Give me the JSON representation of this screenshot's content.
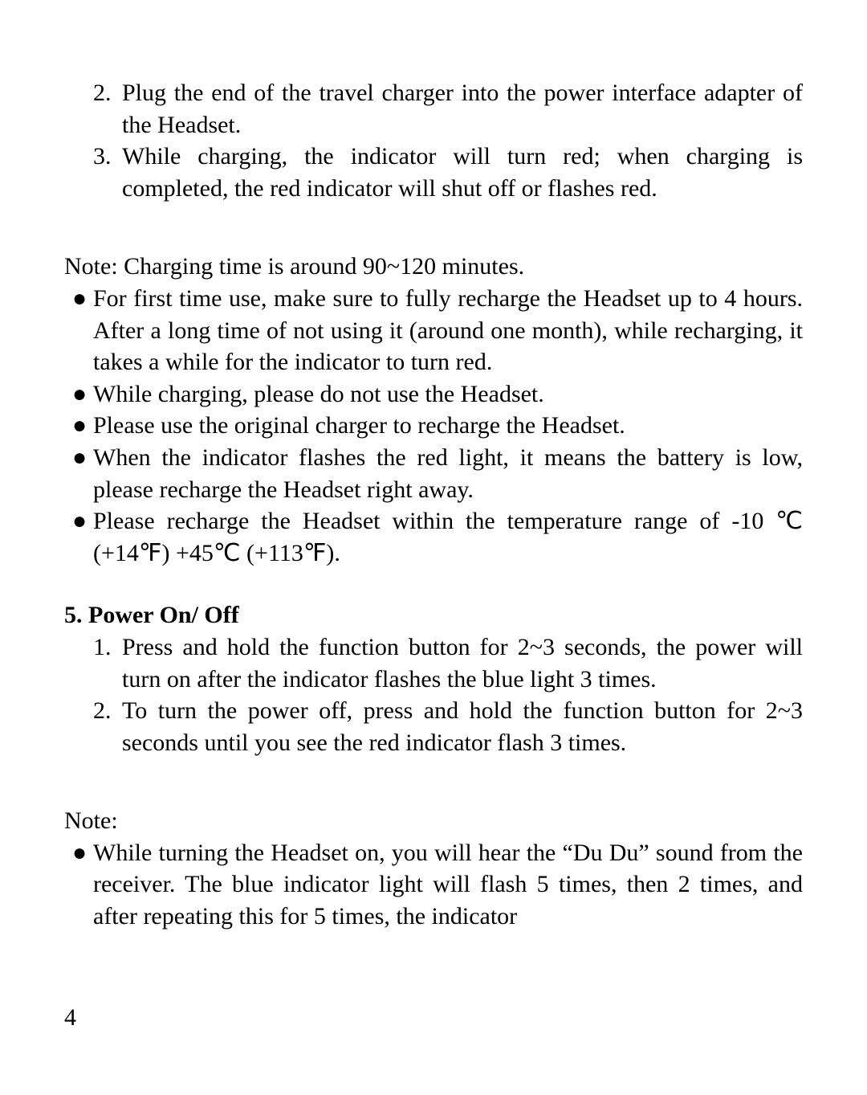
{
  "charging_steps": {
    "items": [
      {
        "num": "2.",
        "text": "Plug the end of the travel charger into the power interface adapter of the Headset."
      },
      {
        "num": "3.",
        "text": "While charging, the indicator will turn red; when charging is completed, the red indicator will shut off or flashes red."
      }
    ]
  },
  "charging_note_label": "Note: Charging time is around 90~120 minutes.",
  "charging_notes": {
    "items": [
      "For first time use, make sure to fully recharge the Headset up to 4 hours.  After a long time of not using it (around one month), while recharging, it takes a while for the indicator to turn red.",
      "While charging, please do not use the Headset.",
      "Please use the original charger to recharge the Headset.",
      "When the indicator flashes the red light, it means the battery is low, please recharge the Headset right away.",
      "Please recharge the Headset within the temperature range of -10 ℃ (+14℉) +45℃ (+113℉)."
    ]
  },
  "power_section": {
    "heading": "5. Power On/ Off",
    "steps": [
      {
        "num": "1.",
        "text": "Press and hold the function button for 2~3 seconds, the power will turn on after the indicator flashes the blue light 3 times."
      },
      {
        "num": "2.",
        "text": "To turn the power off, press and hold the function button for 2~3 seconds until you see the red indicator flash 3 times."
      }
    ]
  },
  "power_note_label": "Note:",
  "power_notes": {
    "items": [
      "While turning the Headset on, you will hear the “Du Du” sound from the receiver. The blue indicator light will flash 5 times, then 2 times, and after repeating this for 5 times, the indicator"
    ]
  },
  "page_number": "4",
  "bullet_glyph": "●"
}
